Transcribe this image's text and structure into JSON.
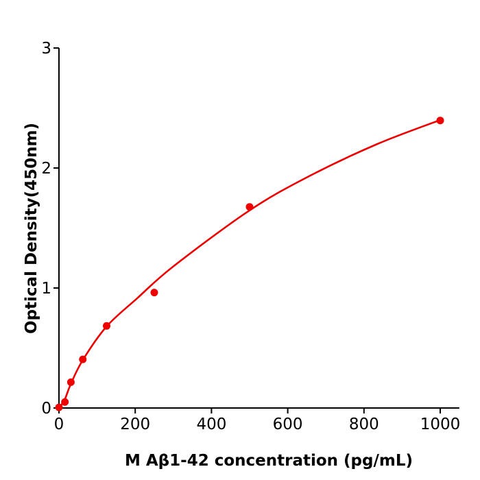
{
  "chart_data": {
    "type": "scatter",
    "title": "",
    "xlabel": "M  Aβ1-42 concentration (pg/mL)",
    "ylabel": "Optical Density(450nm)",
    "xlim": [
      0,
      1050
    ],
    "ylim": [
      0,
      3
    ],
    "xticks": [
      0,
      200,
      400,
      600,
      800,
      1000
    ],
    "yticks": [
      0,
      1,
      2,
      3
    ],
    "grid": false,
    "color": "#ee0000",
    "points": {
      "x": [
        0,
        15.6,
        31.25,
        62.5,
        125,
        250,
        500,
        1000
      ],
      "y": [
        0.005,
        0.05,
        0.215,
        0.405,
        0.684,
        0.962,
        1.676,
        2.396
      ]
    },
    "fit_curve": {
      "x": [
        0,
        15,
        31,
        62.5,
        125,
        205,
        300,
        500,
        655,
        835,
        1000
      ],
      "y": [
        0,
        0.07,
        0.2,
        0.4,
        0.68,
        0.914,
        1.18,
        1.647,
        1.93,
        2.2,
        2.4
      ]
    }
  }
}
